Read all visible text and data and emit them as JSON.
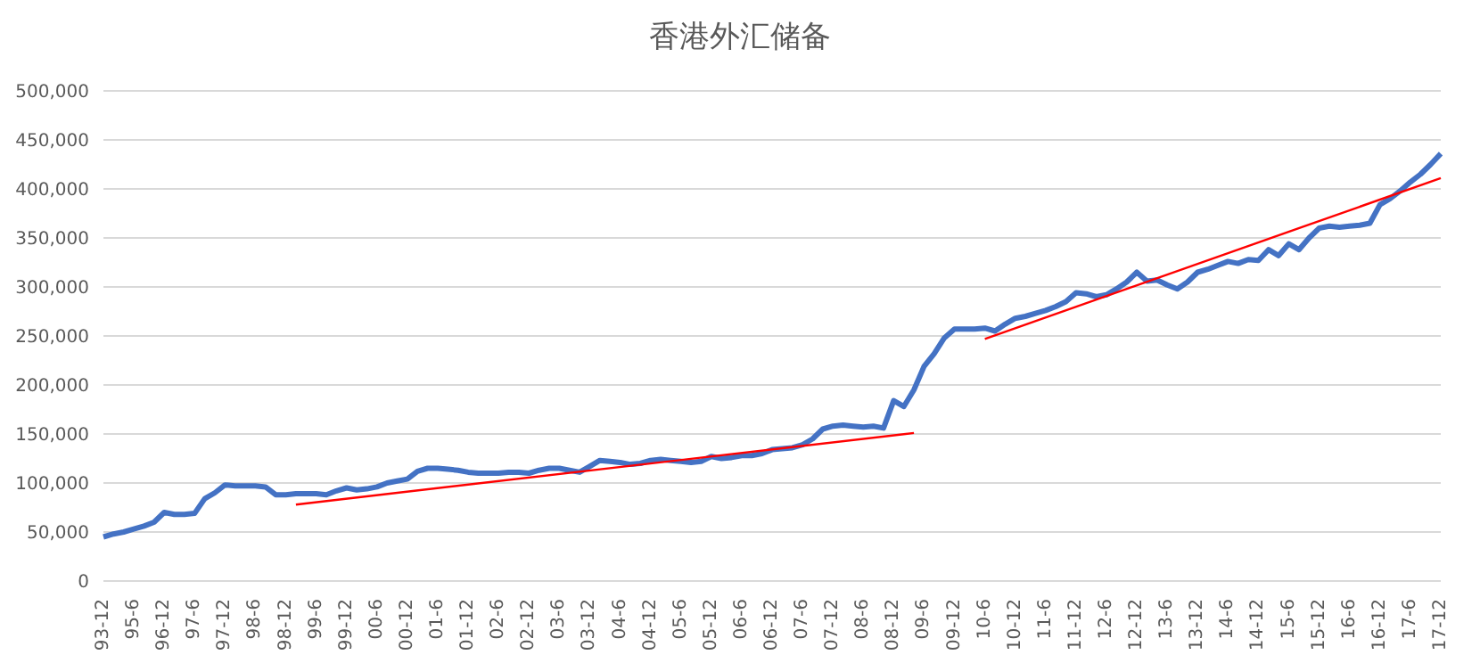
{
  "chart_data": {
    "type": "line",
    "title": "香港外汇储备",
    "categories": [
      "93-12",
      null,
      null,
      "95-6",
      null,
      null,
      "96-12",
      null,
      null,
      "97-6",
      null,
      null,
      "97-12",
      null,
      null,
      "98-6",
      null,
      null,
      "98-12",
      null,
      null,
      "99-6",
      null,
      null,
      "99-12",
      null,
      null,
      "00-6",
      null,
      null,
      "00-12",
      null,
      null,
      "01-6",
      null,
      null,
      "01-12",
      null,
      null,
      "02-6",
      null,
      null,
      "02-12",
      null,
      null,
      "03-6",
      null,
      null,
      "03-12",
      null,
      null,
      "04-6",
      null,
      null,
      "04-12",
      null,
      null,
      "05-6",
      null,
      null,
      "05-12",
      null,
      null,
      "06-6",
      null,
      null,
      "06-12",
      null,
      null,
      "07-6",
      null,
      null,
      "07-12",
      null,
      null,
      "08-6",
      null,
      null,
      "08-12",
      null,
      null,
      "09-6",
      null,
      null,
      "09-12",
      null,
      null,
      "10-6",
      null,
      null,
      "10-12",
      null,
      null,
      "11-6",
      null,
      null,
      "11-12",
      null,
      null,
      "12-6",
      null,
      null,
      "12-12",
      null,
      null,
      "13-6",
      null,
      null,
      "13-12",
      null,
      null,
      "14-6",
      null,
      null,
      "14-12",
      null,
      null,
      "15-6",
      null,
      null,
      "15-12",
      null,
      null,
      "16-6",
      null,
      null,
      "16-12",
      null,
      null,
      "17-6",
      null,
      null,
      "17-12"
    ],
    "series": [
      {
        "color": "#4472c4",
        "values": [
          45000,
          48000,
          50000,
          53000,
          56000,
          60000,
          70000,
          68000,
          68000,
          69000,
          84000,
          90000,
          98000,
          97000,
          97000,
          97000,
          96000,
          88000,
          88000,
          89000,
          89000,
          89000,
          88000,
          92000,
          95000,
          93000,
          94000,
          96000,
          100000,
          102000,
          104000,
          112000,
          115000,
          115000,
          114000,
          113000,
          111000,
          110000,
          110000,
          110000,
          111000,
          111000,
          110000,
          113000,
          115000,
          115000,
          113000,
          111000,
          117000,
          123000,
          122000,
          121000,
          119000,
          120000,
          123000,
          124000,
          123000,
          122000,
          121000,
          122000,
          127000,
          125000,
          126000,
          128000,
          128000,
          130000,
          134000,
          135000,
          136000,
          139000,
          145000,
          155000,
          158000,
          159000,
          158000,
          157000,
          158000,
          156000,
          184000,
          178000,
          195000,
          219000,
          232000,
          248000,
          257000,
          257000,
          257000,
          258000,
          255000,
          262000,
          268000,
          270000,
          273000,
          276000,
          280000,
          285000,
          294000,
          293000,
          290000,
          292000,
          298000,
          305000,
          315000,
          306000,
          307000,
          302000,
          298000,
          305000,
          315000,
          318000,
          322000,
          326000,
          324000,
          328000,
          327000,
          338000,
          332000,
          344000,
          338000,
          350000,
          360000,
          362000,
          361000,
          362000,
          363000,
          365000,
          384000,
          390000,
          398000,
          407000,
          415000,
          425000,
          436000
        ]
      },
      {
        "color": "#ff0000",
        "values": [
          null,
          null,
          null,
          null,
          null,
          null,
          null,
          null,
          null,
          null,
          null,
          null,
          null,
          null,
          null,
          null,
          null,
          null,
          null,
          78000,
          null,
          null,
          null,
          null,
          null,
          null,
          null,
          null,
          null,
          null,
          null,
          null,
          null,
          null,
          null,
          null,
          null,
          null,
          null,
          null,
          null,
          null,
          null,
          null,
          null,
          null,
          null,
          null,
          null,
          null,
          null,
          null,
          null,
          null,
          null,
          null,
          null,
          null,
          null,
          null,
          null,
          null,
          null,
          null,
          null,
          null,
          null,
          null,
          null,
          null,
          null,
          null,
          null,
          null,
          null,
          null,
          null,
          null,
          null,
          null,
          151000,
          null,
          null,
          null,
          null,
          null,
          null,
          null,
          null,
          null,
          null,
          null,
          null,
          null,
          null,
          null,
          null,
          null,
          null,
          null,
          null,
          null,
          null,
          null,
          null,
          null,
          null,
          null,
          null,
          null,
          null,
          null,
          null,
          null,
          null,
          null,
          null,
          null,
          null,
          null,
          null,
          null,
          null,
          null,
          null,
          null,
          null,
          null,
          null,
          null,
          null,
          null,
          null
        ]
      },
      {
        "color": "#ff0000",
        "values": [
          null,
          null,
          null,
          null,
          null,
          null,
          null,
          null,
          null,
          null,
          null,
          null,
          null,
          null,
          null,
          null,
          null,
          null,
          null,
          null,
          null,
          null,
          null,
          null,
          null,
          null,
          null,
          null,
          null,
          null,
          null,
          null,
          null,
          null,
          null,
          null,
          null,
          null,
          null,
          null,
          null,
          null,
          null,
          null,
          null,
          null,
          null,
          null,
          null,
          null,
          null,
          null,
          null,
          null,
          null,
          null,
          null,
          null,
          null,
          null,
          null,
          null,
          null,
          null,
          null,
          null,
          null,
          null,
          null,
          null,
          null,
          null,
          null,
          null,
          null,
          null,
          null,
          null,
          null,
          null,
          null,
          null,
          null,
          null,
          null,
          null,
          null,
          247000,
          null,
          null,
          null,
          null,
          null,
          null,
          null,
          null,
          null,
          null,
          null,
          null,
          null,
          null,
          null,
          null,
          null,
          null,
          null,
          null,
          null,
          null,
          null,
          null,
          null,
          null,
          null,
          null,
          null,
          null,
          null,
          null,
          null,
          null,
          null,
          null,
          null,
          null,
          null,
          null,
          null,
          null,
          null,
          null,
          411000
        ]
      }
    ],
    "ylim": [
      0,
      500000
    ],
    "yticks": [
      0,
      {
        "value": 50000,
        "label": "50,000"
      },
      {
        "value": 100000,
        "label": "100,000"
      },
      {
        "value": 150000,
        "label": "150,000"
      },
      {
        "value": 200000,
        "label": "200,000"
      },
      {
        "value": 250000,
        "label": "250,000"
      },
      {
        "value": 300000,
        "label": "300,000"
      },
      {
        "value": 350000,
        "label": "350,000"
      },
      {
        "value": 400000,
        "label": "400,000"
      },
      {
        "value": 450000,
        "label": "450,000"
      },
      {
        "value": 500000,
        "label": "500,000"
      }
    ],
    "grid": "y",
    "legend": false,
    "marker": "none"
  }
}
